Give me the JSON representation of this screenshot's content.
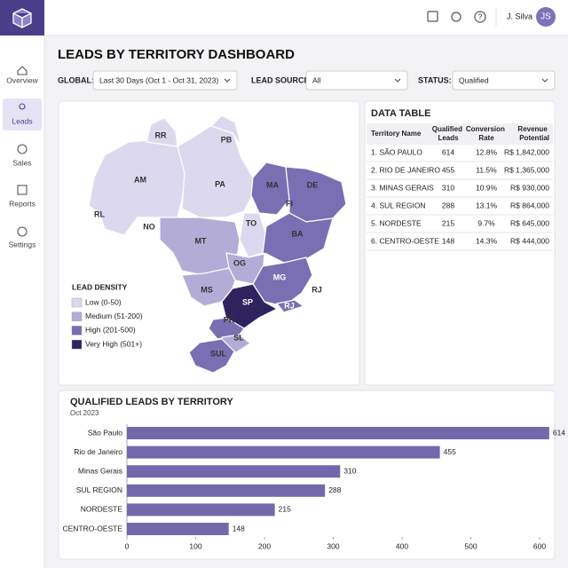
{
  "header": {
    "user": "J. Silva",
    "initials": "JS"
  },
  "nav": [
    "Overview",
    "Leads",
    "Sales",
    "Reports",
    "Settings"
  ],
  "title": "LEADS BY TERRITORY DASHBOARD",
  "filters": [
    {
      "label": "GLOBAL:",
      "value": "Last 30 Days (Oct 1 - Oct 31, 2023)"
    },
    {
      "label": "LEAD SOURCE:",
      "value": "All"
    },
    {
      "label": "STATUS:",
      "value": "Qualified"
    }
  ],
  "map": {
    "labels": [
      "RR",
      "PB",
      "AM",
      "PA",
      "MA",
      "DE",
      "FI",
      "RL",
      "NO",
      "TO",
      "MT",
      "BA",
      "OG",
      "MG",
      "MS",
      "SP",
      "RJ",
      "RJ",
      "PR",
      "SL",
      "SUL"
    ],
    "legend": {
      "title": "LEAD DENSITY",
      "items": [
        "Low (0-50)",
        "Medium (51-200)",
        "High (201-500)",
        "Very High (501+)"
      ]
    }
  },
  "table": {
    "title": "DATA TABLE",
    "columns": [
      "Territory Name",
      "Qualified Leads",
      "Conversion Rate",
      "Revenue Potential"
    ],
    "rows": [
      [
        "1. SÃO PAULO",
        "614",
        "12.8%",
        "R$ 1,842,000"
      ],
      [
        "2. RIO DE JANEIRO",
        "455",
        "11.5%",
        "R$ 1,365,000"
      ],
      [
        "3. MINAS GERAIS",
        "310",
        "10.9%",
        "R$ 930,000"
      ],
      [
        "4. SUL REGION",
        "288",
        "13.1%",
        "R$ 864,000"
      ],
      [
        "5. NORDESTE",
        "215",
        "9.7%",
        "R$ 645,000"
      ],
      [
        "6. CENTRO-OESTE",
        "148",
        "14.3%",
        "R$ 444,000"
      ]
    ]
  },
  "chart_data": {
    "type": "bar",
    "title": "QUALIFIED LEADS BY TERRITORY",
    "subtitle": "Oct 2023",
    "color": "#7468ad",
    "categories": [
      "São Paulo",
      "Rio de Janeiro",
      "Minas Gerais",
      "SUL REGION",
      "NORDESTE",
      "CENTRO-OESTE"
    ],
    "values": [
      614,
      455,
      310,
      288,
      215,
      148
    ],
    "xlim": [
      0,
      600
    ],
    "xticks": [
      0,
      100,
      200,
      300,
      400,
      500,
      600
    ]
  }
}
